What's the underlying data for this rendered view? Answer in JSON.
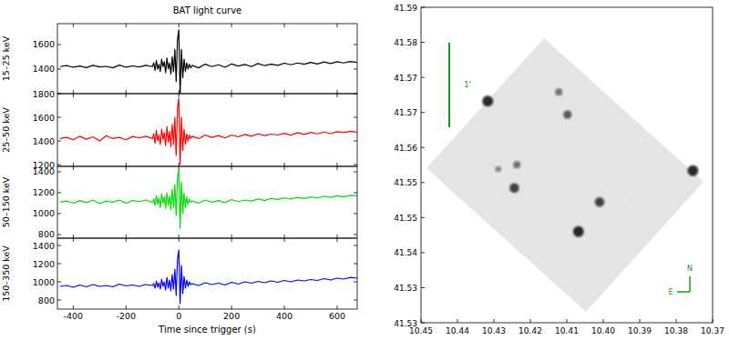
{
  "chart_data": [
    {
      "type": "line",
      "title": "BAT light curve",
      "x_label": "Time since trigger (s)",
      "xlim": [
        -460,
        676
      ],
      "xticks": [
        -400,
        -200,
        0,
        200,
        400,
        600
      ],
      "x": [
        -450,
        -425,
        -400,
        -375,
        -350,
        -325,
        -300,
        -275,
        -250,
        -225,
        -200,
        -175,
        -150,
        -125,
        -100,
        -95,
        -90,
        -85,
        -80,
        -75,
        -70,
        -65,
        -60,
        -55,
        -50,
        -45,
        -40,
        -35,
        -30,
        -25,
        -20,
        -15,
        -10,
        -5,
        0,
        5,
        10,
        15,
        20,
        25,
        30,
        35,
        40,
        45,
        50,
        75,
        100,
        125,
        150,
        175,
        200,
        225,
        250,
        275,
        300,
        325,
        350,
        375,
        400,
        425,
        450,
        475,
        500,
        525,
        550,
        575,
        600,
        625,
        650,
        675
      ],
      "series": [
        {
          "name": "15–25 keV",
          "color": "#000000",
          "ylim": [
            1200,
            1770
          ],
          "yticks": [
            1400,
            1600
          ],
          "values": [
            1420,
            1428,
            1415,
            1425,
            1412,
            1430,
            1418,
            1422,
            1410,
            1432,
            1415,
            1426,
            1418,
            1430,
            1420,
            1450,
            1390,
            1470,
            1400,
            1440,
            1380,
            1480,
            1420,
            1460,
            1370,
            1490,
            1400,
            1450,
            1360,
            1500,
            1380,
            1560,
            1300,
            1640,
            1720,
            1180,
            1560,
            1330,
            1480,
            1380,
            1450,
            1400,
            1440,
            1410,
            1430,
            1410,
            1440,
            1420,
            1435,
            1415,
            1442,
            1425,
            1438,
            1420,
            1445,
            1428,
            1440,
            1430,
            1448,
            1435,
            1450,
            1440,
            1455,
            1442,
            1458,
            1445,
            1460,
            1450,
            1462,
            1455
          ]
        },
        {
          "name": "25–50 keV",
          "color": "#ff0000",
          "ylim": [
            1185,
            1800
          ],
          "yticks": [
            1200,
            1400,
            1600,
            1800
          ],
          "values": [
            1420,
            1430,
            1410,
            1440,
            1415,
            1435,
            1400,
            1445,
            1420,
            1430,
            1410,
            1438,
            1425,
            1440,
            1420,
            1460,
            1380,
            1490,
            1400,
            1450,
            1370,
            1500,
            1410,
            1470,
            1360,
            1520,
            1390,
            1480,
            1350,
            1540,
            1370,
            1600,
            1280,
            1680,
            1760,
            1200,
            1600,
            1320,
            1500,
            1370,
            1460,
            1400,
            1450,
            1420,
            1440,
            1420,
            1450,
            1430,
            1445,
            1425,
            1450,
            1435,
            1455,
            1440,
            1460,
            1445,
            1458,
            1450,
            1465,
            1448,
            1470,
            1455,
            1472,
            1460,
            1475,
            1462,
            1478,
            1470,
            1482,
            1475
          ]
        },
        {
          "name": "50–150 keV",
          "color": "#00dd00",
          "ylim": [
            765,
            1452
          ],
          "yticks": [
            800,
            1000,
            1200,
            1400
          ],
          "values": [
            1110,
            1120,
            1100,
            1125,
            1105,
            1130,
            1095,
            1120,
            1110,
            1130,
            1100,
            1125,
            1115,
            1130,
            1110,
            1140,
            1080,
            1170,
            1090,
            1150,
            1060,
            1190,
            1100,
            1160,
            1050,
            1200,
            1080,
            1170,
            1040,
            1230,
            1060,
            1280,
            980,
            1350,
            1420,
            860,
            1300,
            1000,
            1200,
            1060,
            1160,
            1090,
            1140,
            1110,
            1120,
            1100,
            1130,
            1110,
            1125,
            1105,
            1135,
            1115,
            1130,
            1120,
            1140,
            1125,
            1145,
            1135,
            1150,
            1140,
            1155,
            1145,
            1160,
            1150,
            1165,
            1155,
            1170,
            1160,
            1175,
            1170
          ]
        },
        {
          "name": "150–350 keV",
          "color": "#0000ff",
          "ylim": [
            700,
            1480
          ],
          "yticks": [
            800,
            1000,
            1200,
            1400
          ],
          "values": [
            950,
            960,
            940,
            965,
            945,
            970,
            950,
            960,
            945,
            975,
            955,
            965,
            950,
            970,
            960,
            980,
            930,
            1010,
            940,
            990,
            920,
            1030,
            950,
            1000,
            910,
            1050,
            930,
            1020,
            900,
            1080,
            920,
            1140,
            850,
            1250,
            1350,
            760,
            1180,
            870,
            1060,
            930,
            1020,
            950,
            1000,
            970,
            980,
            960,
            990,
            970,
            985,
            965,
            995,
            975,
            1000,
            985,
            1005,
            990,
            1010,
            995,
            1015,
            1000,
            1020,
            1010,
            1025,
            1015,
            1035,
            1020,
            1040,
            1030,
            1048,
            1040
          ]
        }
      ]
    },
    {
      "type": "scatter",
      "color": "#1a1a1a",
      "xlim": [
        10.45,
        10.37
      ],
      "xticks": [
        10.45,
        10.44,
        10.43,
        10.42,
        10.41,
        {
          "value": 10.4,
          "label": "10.40"
        },
        10.39,
        10.38,
        10.37
      ],
      "ylim": [
        41.528,
        41.5865
      ],
      "yticks": [
        {
          "value": 41.528,
          "label": "41.53"
        },
        {
          "value": 41.5345,
          "label": "41.53"
        },
        {
          "value": 41.541,
          "label": "41.54"
        },
        {
          "value": 41.5475,
          "label": "41.55"
        },
        {
          "value": 41.554,
          "label": "41.55"
        },
        {
          "value": 41.5605,
          "label": "41.56"
        },
        {
          "value": 41.567,
          "label": "41.57"
        },
        {
          "value": 41.5735,
          "label": "41.57"
        },
        {
          "value": 41.58,
          "label": "41.58"
        },
        {
          "value": 41.5865,
          "label": "41.59"
        }
      ],
      "x": [
        10.4317,
        10.4122,
        10.4098,
        10.4237,
        10.4244,
        10.401,
        10.4068,
        10.3754,
        10.4288
      ],
      "y": [
        41.5691,
        41.5708,
        41.5666,
        41.5573,
        41.553,
        41.5504,
        41.5449,
        41.5562,
        41.5565
      ],
      "sizes": [
        3,
        1.5,
        2,
        1.5,
        2.5,
        2.5,
        3,
        3,
        1
      ],
      "scale_bar_label": "1'",
      "compass": [
        "N",
        "E"
      ]
    }
  ]
}
